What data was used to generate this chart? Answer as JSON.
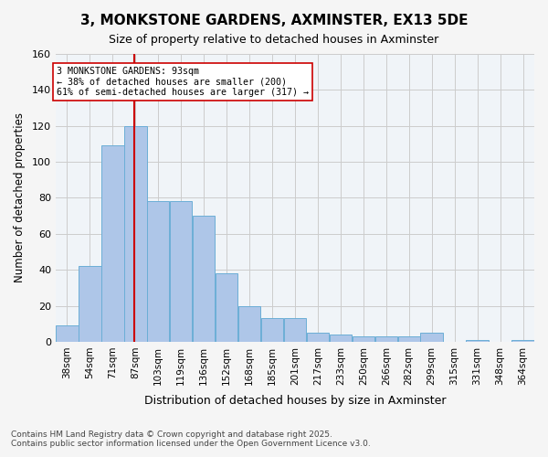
{
  "title": "3, MONKSTONE GARDENS, AXMINSTER, EX13 5DE",
  "subtitle": "Size of property relative to detached houses in Axminster",
  "xlabel": "Distribution of detached houses by size in Axminster",
  "ylabel": "Number of detached properties",
  "bar_labels": [
    "38sqm",
    "54sqm",
    "71sqm",
    "87sqm",
    "103sqm",
    "119sqm",
    "136sqm",
    "152sqm",
    "168sqm",
    "185sqm",
    "201sqm",
    "217sqm",
    "233sqm",
    "250sqm",
    "266sqm",
    "282sqm",
    "299sqm",
    "315sqm",
    "331sqm",
    "348sqm",
    "364sqm"
  ],
  "bar_values": [
    9,
    42,
    109,
    120,
    78,
    78,
    70,
    38,
    20,
    13,
    13,
    5,
    4,
    3,
    3,
    3,
    5,
    0,
    1,
    0,
    1
  ],
  "bar_color": "#aec6e8",
  "bar_edgecolor": "#6baed6",
  "bar_width": 1.0,
  "vline_x": 93,
  "vline_color": "#cc0000",
  "annotation_title": "3 MONKSTONE GARDENS: 93sqm",
  "annotation_line1": "← 38% of detached houses are smaller (200)",
  "annotation_line2": "61% of semi-detached houses are larger (317) →",
  "annotation_box_color": "#ffffff",
  "annotation_border_color": "#cc0000",
  "ylim": [
    0,
    160
  ],
  "yticks": [
    0,
    20,
    40,
    60,
    80,
    100,
    120,
    140,
    160
  ],
  "grid_color": "#cccccc",
  "bg_color": "#f0f4f8",
  "footer_line1": "Contains HM Land Registry data © Crown copyright and database right 2025.",
  "footer_line2": "Contains public sector information licensed under the Open Government Licence v3.0.",
  "bin_width": 16
}
